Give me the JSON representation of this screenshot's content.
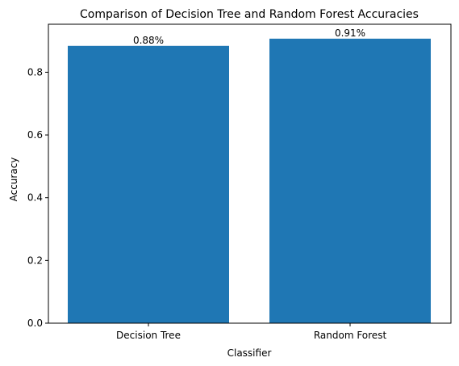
{
  "chart_data": {
    "type": "bar",
    "title": "Comparison of Decision Tree and Random Forest Accuracies",
    "xlabel": "Classifier",
    "ylabel": "Accuracy",
    "categories": [
      "Decision Tree",
      "Random Forest"
    ],
    "values": [
      0.884,
      0.907
    ],
    "data_labels": [
      "0.88%",
      "0.91%"
    ],
    "ylim": [
      0,
      0.953
    ],
    "yticks": [
      0.0,
      0.2,
      0.4,
      0.6,
      0.8
    ],
    "ytick_labels": [
      "0.0",
      "0.2",
      "0.4",
      "0.6",
      "0.8"
    ],
    "bar_color": "#1f77b4",
    "grid": false,
    "legend": "none"
  }
}
